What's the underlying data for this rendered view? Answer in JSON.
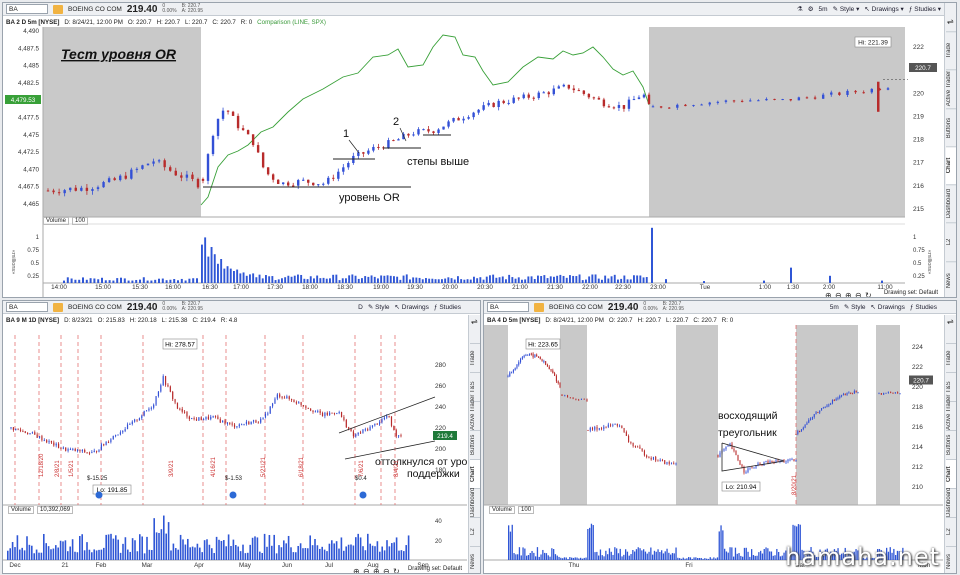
{
  "colors": {
    "up": "#3350d6",
    "down": "#b82b2b",
    "comparison": "#38a038",
    "volume": "#2f56d6",
    "shade": "#c9c9c9",
    "accent": "#f1b342"
  },
  "w1": {
    "symbol": "BA",
    "company": "BOEING CO COM",
    "last": "219.40",
    "chg": "0",
    "chgpct": "0.00%",
    "bid": "B: 220.7",
    "ask": "A: 220.95",
    "timeframe": "5m",
    "studies_label": "Studies",
    "style_label": "Style",
    "drawings_label": "Drawings",
    "info": {
      "title": "BA 2 D 5m [NYSE]",
      "date": "D: 8/24/21, 12:00 PM",
      "o": "O: 220.7",
      "h": "H: 220.7",
      "l": "L: 220.7",
      "c": "C: 220.7",
      "r": "R: 0",
      "cmp": "Comparison (LINE, SPX)"
    },
    "title_note": "Тест уровня OR",
    "ann": {
      "n1": "1",
      "n2": "2",
      "steps": "степы выше",
      "level": "уровень OR"
    },
    "spx_tag": "4,479.53",
    "price_tag": "220.7",
    "hi_label": "Hi: 221.39",
    "left_axis": [
      "4,490",
      "4,487.5",
      "4,485",
      "4,482.5",
      "4,480",
      "4,477.5",
      "4,475",
      "4,472.5",
      "4,470",
      "4,467.5",
      "4,465"
    ],
    "right_axis": [
      "222",
      "221",
      "220",
      "219",
      "218",
      "217",
      "216",
      "215"
    ],
    "vol_label": "Volume",
    "vol_val": "100",
    "vol_axis": [
      "1",
      "0.75",
      "0.5",
      "0.25"
    ],
    "millions": "«millions»",
    "time_axis": [
      "14:00",
      "15:00",
      "15:30",
      "16:00",
      "16:30",
      "17:00",
      "17:30",
      "18:00",
      "18:30",
      "19:00",
      "19:30",
      "20:00",
      "20:30",
      "21:00",
      "21:30",
      "22:00",
      "22:30",
      "23:00",
      "Tue",
      "1:00",
      "1:30",
      "2:00",
      "11:00"
    ],
    "drawing_set": "Drawing set: Default",
    "tabs": [
      "Trade",
      "Active Trader",
      "Buttons",
      "Chart",
      "Dashboard",
      "L2",
      "News"
    ]
  },
  "w2": {
    "symbol": "BA",
    "company": "BOEING CO COM",
    "last": "219.40",
    "chg": "0",
    "chgpct": "0.00%",
    "bid": "B: 220.7",
    "ask": "A: 220.95",
    "timeframe": "D",
    "studies_label": "Studies",
    "style_label": "Style",
    "drawings_label": "Drawings",
    "info": {
      "title": "BA 9 M 1D [NYSE]",
      "date": "D: 8/23/21",
      "o": "O: 215.83",
      "h": "H: 220.18",
      "l": "L: 215.38",
      "c": "C: 219.4",
      "r": "R: 4.8"
    },
    "hi": "Hi: 278.57",
    "lo": "Lo: 191.85",
    "price_tag": "219.4",
    "events": [
      "$-15.25",
      "$-1.53",
      "$0.4"
    ],
    "ann": {
      "a1": "оттолкнулся от уровня",
      "a2": "поддержки"
    },
    "right_axis": [
      "280",
      "260",
      "240",
      "220",
      "200",
      "180"
    ],
    "vol_label": "Volume",
    "vol_val": "10,392,069",
    "vol_axis": [
      "40",
      "20"
    ],
    "date_labels": [
      "12/18/20",
      "2/8/21",
      "1/5/21",
      "3/9/21",
      "4/16/21",
      "5/21/21",
      "6/18/21",
      "7/6/21",
      "8/4/21"
    ],
    "time_axis": [
      "Dec",
      "21",
      "Feb",
      "Mar",
      "Apr",
      "May",
      "Jun",
      "Jul",
      "Aug",
      "Sep"
    ],
    "drawing_set": "Drawing set: Default",
    "tabs": [
      "Trade",
      "T&S",
      "Active Trader",
      "Buttons",
      "Chart",
      "Dashboard",
      "L2",
      "News"
    ]
  },
  "w3": {
    "symbol": "BA",
    "company": "BOEING CO COM",
    "last": "219.40",
    "chg": "0",
    "chgpct": "0.00%",
    "bid": "B: 220.7",
    "ask": "A: 220.95",
    "timeframe": "5m",
    "studies_label": "Studies",
    "style_label": "Style",
    "drawings_label": "Drawings",
    "info": {
      "title": "BA 4 D 5m [NYSE]",
      "date": "D: 8/24/21, 12:00 PM",
      "o": "O: 220.7",
      "h": "H: 220.7",
      "l": "L: 220.7",
      "c": "C: 220.7",
      "r": "R: 0"
    },
    "hi": "Hi: 223.65",
    "lo": "Lo: 210.94",
    "price_tag": "220.7",
    "ann": {
      "a1": "восходящий",
      "a2": "треугольник"
    },
    "date_labels": [
      "8/20/21"
    ],
    "right_axis": [
      "224",
      "222",
      "220",
      "218",
      "216",
      "214",
      "212",
      "210"
    ],
    "vol_label": "Volume",
    "vol_val": "100",
    "time_axis": [
      "Thu",
      "Fri",
      "Sat",
      "Mon"
    ],
    "tabs": [
      "Trade",
      "T&S",
      "Active Trader",
      "Buttons",
      "Chart",
      "Dashboard",
      "L2",
      "News"
    ]
  },
  "watermark": "hamaha.net"
}
